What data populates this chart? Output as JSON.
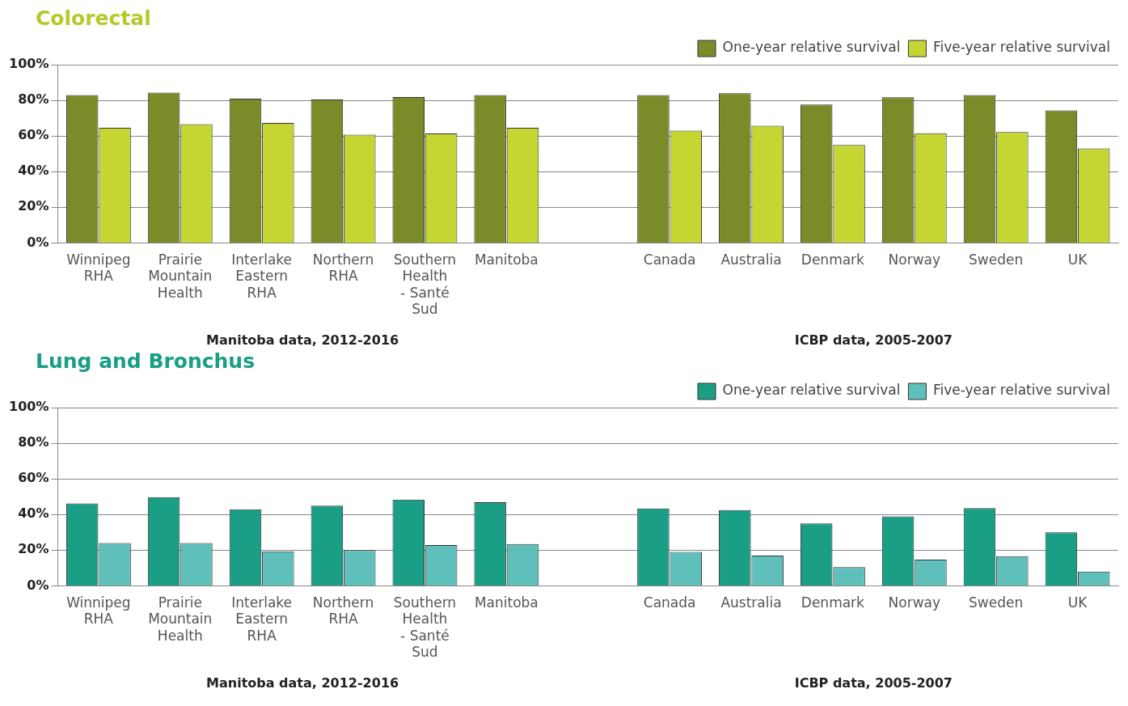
{
  "chart_data": [
    {
      "type": "bar",
      "title": "Colorectal",
      "categories": [
        "Winnipeg RHA",
        "Prairie Mountain Health",
        "Interlake Eastern RHA",
        "Northern RHA",
        "Southern Health - Santé Sud",
        "Manitoba",
        null,
        "Canada",
        "Australia",
        "Denmark",
        "Norway",
        "Sweden",
        "UK"
      ],
      "series": [
        {
          "name": "One-year relative survival",
          "color": "#7a8c2a",
          "values": [
            83,
            84.4,
            81,
            80.5,
            81.8,
            83,
            null,
            83,
            84,
            77.6,
            81.7,
            83,
            74.4
          ]
        },
        {
          "name": "Five-year relative survival",
          "color": "#c5d633",
          "values": [
            64.6,
            66.6,
            67.3,
            60.7,
            61.4,
            64.6,
            null,
            63,
            65.7,
            55,
            61.5,
            62.2,
            53
          ]
        }
      ],
      "ylim": [
        0,
        100
      ],
      "yticks": [
        {
          "value": 0,
          "label": "0%"
        },
        {
          "value": 20,
          "label": "20%"
        },
        {
          "value": 40,
          "label": "40%"
        },
        {
          "value": 60,
          "label": "60%"
        },
        {
          "value": 80,
          "label": "80%"
        },
        {
          "value": 100,
          "label": "100%"
        }
      ],
      "grid": "y",
      "legend": "top right",
      "annotations": [
        "Manitoba data, 2012-2016",
        "ICBP data, 2005-2007"
      ]
    },
    {
      "type": "bar",
      "title": "Lung and Bronchus",
      "categories": [
        "Winnipeg RHA",
        "Prairie Mountain Health",
        "Interlake Eastern RHA",
        "Northern RHA",
        "Southern Health - Santé Sud",
        "Manitoba",
        null,
        "Canada",
        "Australia",
        "Denmark",
        "Norway",
        "Sweden",
        "UK"
      ],
      "series": [
        {
          "name": "One-year relative survival",
          "color": "#1a9e86",
          "values": [
            46.2,
            49.7,
            43,
            45,
            48.4,
            46.9,
            null,
            43.4,
            42.5,
            35,
            39,
            43.6,
            30
          ]
        },
        {
          "name": "Five-year relative survival",
          "color": "#5fc0bb",
          "values": [
            24,
            24,
            19.4,
            20,
            22.9,
            23.4,
            null,
            19,
            17,
            10.5,
            14.7,
            16.6,
            8
          ]
        }
      ],
      "ylim": [
        0,
        100
      ],
      "yticks": [
        {
          "value": 0,
          "label": "0%"
        },
        {
          "value": 20,
          "label": "20%"
        },
        {
          "value": 40,
          "label": "40%"
        },
        {
          "value": 60,
          "label": "60%"
        },
        {
          "value": 80,
          "label": "80%"
        },
        {
          "value": 100,
          "label": "100%"
        }
      ],
      "grid": "y",
      "legend": "top right",
      "annotations": [
        "Manitoba data, 2012-2016",
        "ICBP data, 2005-2007"
      ]
    }
  ]
}
